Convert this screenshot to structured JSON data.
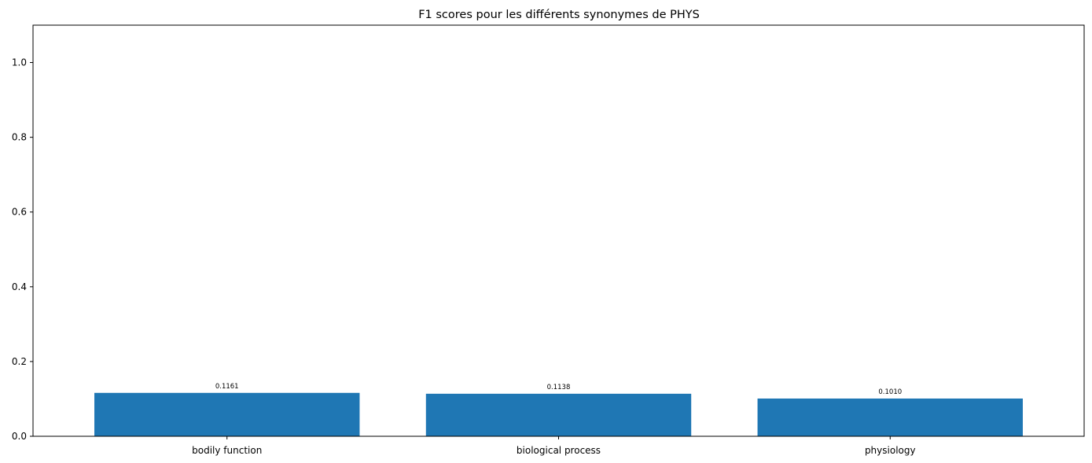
{
  "chart_data": {
    "type": "bar",
    "title": "F1 scores pour les différents synonymes de PHYS",
    "categories": [
      "bodily function",
      "biological process",
      "physiology"
    ],
    "values": [
      0.1161,
      0.1138,
      0.101
    ],
    "value_labels": [
      "0.1161",
      "0.1138",
      "0.1010"
    ],
    "xlabel": "",
    "ylabel": "",
    "ylim": [
      0,
      1.1
    ],
    "yticks": [
      0.0,
      0.2,
      0.4,
      0.6,
      0.8,
      1.0
    ],
    "ytick_labels": [
      "0.0",
      "0.2",
      "0.4",
      "0.6",
      "0.8",
      "1.0"
    ],
    "grid": false,
    "bar_color": "#1f77b4"
  }
}
